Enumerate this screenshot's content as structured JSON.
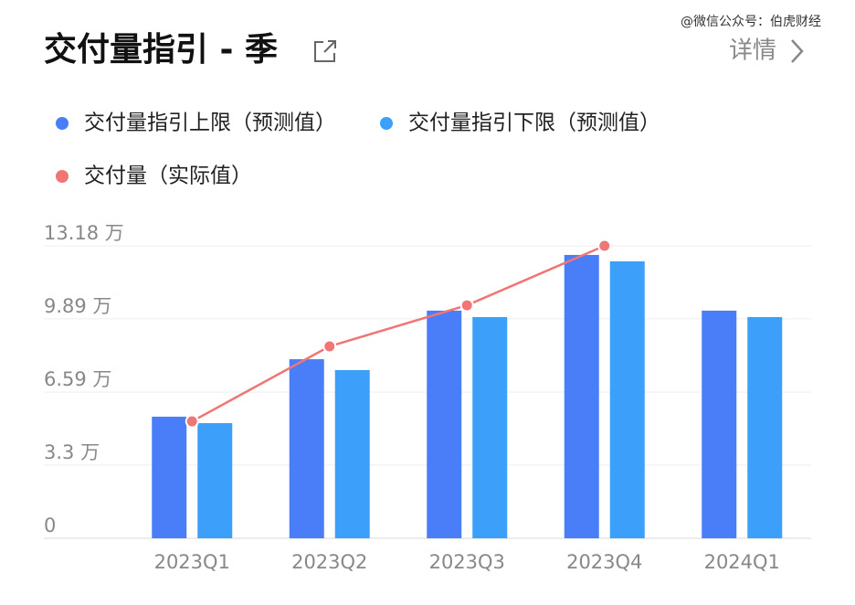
{
  "chart_data": {
    "type": "bar",
    "title": "交付量指引 - 季",
    "link_text": "详情",
    "watermark": "@微信公众号：伯虎财经",
    "categories": [
      "2023Q1",
      "2023Q2",
      "2023Q3",
      "2023Q4",
      "2024Q1"
    ],
    "series": [
      {
        "name": "交付量指引上限（预测值）",
        "color": "#4a7df8",
        "type": "bar",
        "values": [
          5.48,
          8.07,
          10.26,
          12.77,
          10.26
        ]
      },
      {
        "name": "交付量指引下限（预测值）",
        "color": "#3ca0fb",
        "type": "bar",
        "values": [
          5.19,
          7.58,
          9.97,
          12.48,
          9.97
        ]
      },
      {
        "name": "交付量（实际值）",
        "color": "#f07575",
        "type": "line",
        "values": [
          5.27,
          8.65,
          10.5,
          13.18,
          null
        ]
      }
    ],
    "ylim": [
      0,
      13.18
    ],
    "yticks": [
      0,
      {
        "value": 3.3,
        "label": "3.3 万"
      },
      {
        "value": 6.59,
        "label": "6.59 万"
      },
      {
        "value": 9.89,
        "label": "9.89 万"
      },
      {
        "value": 13.18,
        "label": "13.18 万"
      }
    ],
    "grid": true
  }
}
